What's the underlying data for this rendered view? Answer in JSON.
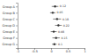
{
  "chart_data": {
    "type": "scatter",
    "orientation": "horizontal",
    "categories": [
      "Group A",
      "Group B",
      "Group C",
      "Group D",
      "Group E",
      "Group F",
      "Group G"
    ],
    "values": [
      0.12,
      0.05,
      0.18,
      0.22,
      0.08,
      0.15,
      0.1
    ],
    "errors": [
      0.1,
      0.08,
      0.12,
      0.1,
      0.09,
      0.11,
      0.07
    ],
    "xlim": [
      -1,
      1
    ],
    "xticks": [
      -1,
      -0.5,
      0,
      0.5,
      1
    ],
    "color": "#333333",
    "marker": "circle",
    "data_labels": true
  }
}
